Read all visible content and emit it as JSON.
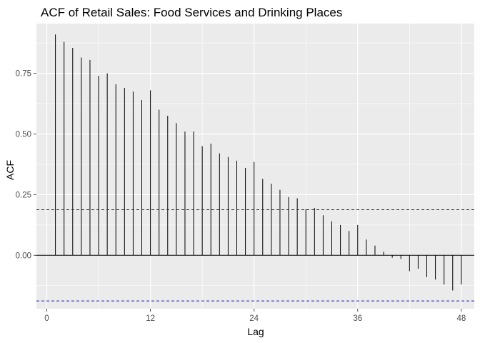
{
  "chart_data": {
    "type": "bar",
    "subtype": "acf-stem",
    "title": "ACF of Retail Sales: Food Services and Drinking Places",
    "xlabel": "Lag",
    "ylabel": "ACF",
    "xlim": [
      -1.2,
      49.5
    ],
    "ylim": [
      -0.22,
      0.955
    ],
    "xticks": [
      0,
      12,
      24,
      36,
      48
    ],
    "xtick_labels": [
      "0",
      "12",
      "24",
      "36",
      "48"
    ],
    "yticks": [
      0,
      0.25,
      0.5,
      0.75
    ],
    "ytick_labels": [
      "0.00",
      "0.25",
      "0.50",
      "0.75"
    ],
    "confidence_band": 0.188,
    "colors": {
      "panel": "#ebebeb",
      "grid": "#ffffff",
      "stem": "#000000",
      "band": "#1a1aa6",
      "tick": "#4d4d4d"
    },
    "lags": [
      1,
      2,
      3,
      4,
      5,
      6,
      7,
      8,
      9,
      10,
      11,
      12,
      13,
      14,
      15,
      16,
      17,
      18,
      19,
      20,
      21,
      22,
      23,
      24,
      25,
      26,
      27,
      28,
      29,
      30,
      31,
      32,
      33,
      34,
      35,
      36,
      37,
      38,
      39,
      40,
      41,
      42,
      43,
      44,
      45,
      46,
      47,
      48
    ],
    "values": [
      0.91,
      0.88,
      0.855,
      0.815,
      0.805,
      0.74,
      0.75,
      0.705,
      0.69,
      0.675,
      0.64,
      0.68,
      0.6,
      0.575,
      0.545,
      0.51,
      0.51,
      0.45,
      0.46,
      0.42,
      0.405,
      0.39,
      0.36,
      0.385,
      0.315,
      0.295,
      0.27,
      0.24,
      0.235,
      0.19,
      0.195,
      0.165,
      0.14,
      0.125,
      0.1,
      0.125,
      0.065,
      0.04,
      0.015,
      -0.01,
      -0.015,
      -0.065,
      -0.055,
      -0.09,
      -0.1,
      -0.12,
      -0.145,
      -0.12
    ]
  }
}
